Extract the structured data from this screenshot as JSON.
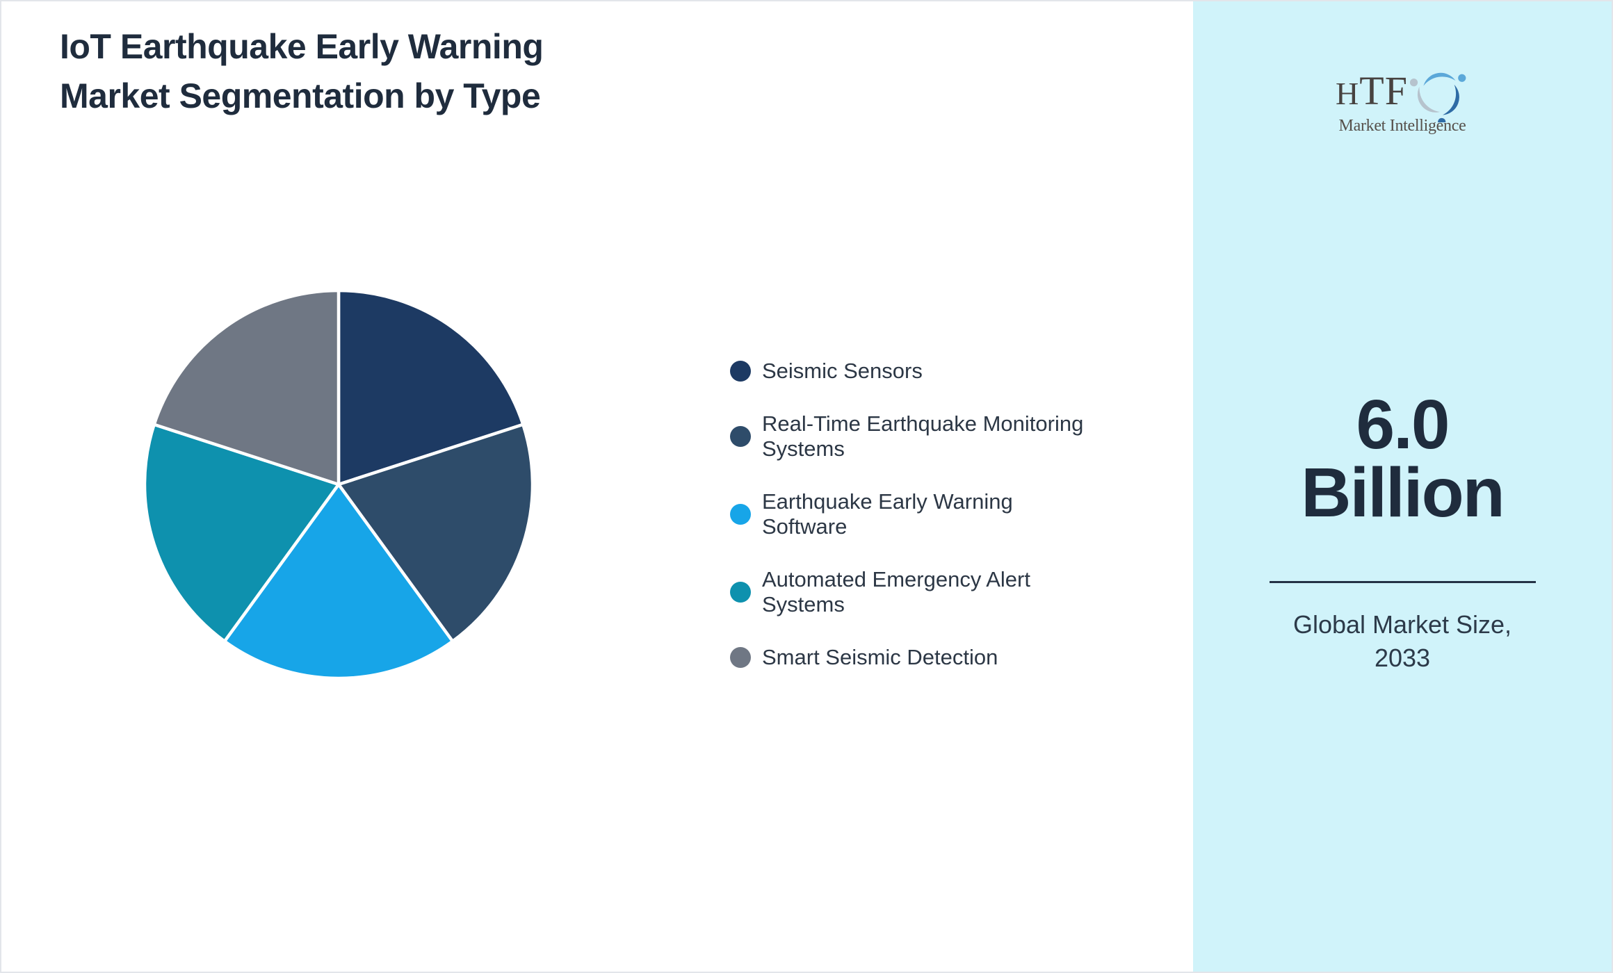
{
  "page": {
    "title_line1": "IoT Earthquake Early Warning",
    "title_line2": "Market Segmentation by Type"
  },
  "chart_data": {
    "type": "pie",
    "title": "IoT Earthquake Early Warning Market Segmentation by Type",
    "labels": [
      "Seismic Sensors",
      "Real-Time Earthquake Monitoring Systems",
      "Earthquake Early Warning Software",
      "Automated Emergency Alert Systems",
      "Smart Seismic Detection"
    ],
    "values": [
      20,
      20,
      20,
      20,
      20
    ],
    "unit": "%",
    "colors": [
      "#1d3a63",
      "#2e4c6a",
      "#17a5e8",
      "#0e91ae",
      "#6f7784"
    ],
    "slice_separator_color": "#ffffff",
    "start_angle_deg": 0,
    "direction": "clockwise",
    "legend_position": "right",
    "data_labels_shown": false
  },
  "sidebar": {
    "background": "#d0f3fa",
    "logo": {
      "text": "HTF",
      "subtext": "Market Intelligence"
    },
    "market_size_value": "6.0",
    "market_size_unit": "Billion",
    "caption_line1": "Global Market Size,",
    "caption_line2": "2033"
  },
  "colors": {
    "title_text": "#1f2c3d",
    "legend_text": "#2c3745",
    "divider": "#243245",
    "page_border": "#e2e5ea"
  }
}
